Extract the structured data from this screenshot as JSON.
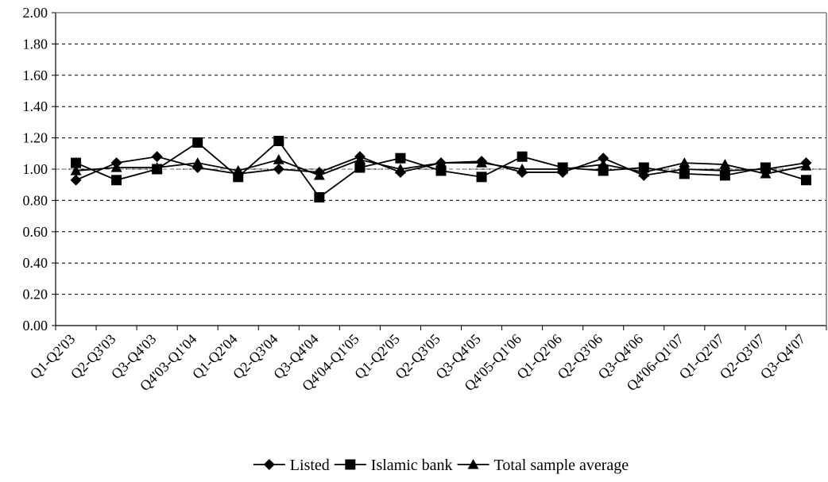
{
  "chart_data": {
    "type": "line",
    "title": "",
    "xlabel": "",
    "ylabel": "",
    "ylim": [
      0,
      2
    ],
    "yticks": [
      "0.00",
      "0.20",
      "0.40",
      "0.60",
      "0.80",
      "1.00",
      "1.20",
      "1.40",
      "1.60",
      "1.80",
      "2.00"
    ],
    "grid": "horizontal dashed",
    "legend_position": "bottom",
    "reference_line": 1.0,
    "categories": [
      "Q1-Q2'03",
      "Q2-Q3'03",
      "Q3-Q4'03",
      "Q4'03-Q1'04",
      "Q1-Q2'04",
      "Q2-Q3'04",
      "Q3-Q4'04",
      "Q4'04-Q1'05",
      "Q1-Q2'05",
      "Q2-Q3'05",
      "Q3-Q4'05",
      "Q4'05-Q1'06",
      "Q1-Q2'06",
      "Q2-Q3'06",
      "Q3-Q4'06",
      "Q4'06-Q1'07",
      "Q1-Q2'07",
      "Q2-Q3'07",
      "Q3-Q4'07"
    ],
    "series": [
      {
        "name": "Listed",
        "marker": "diamond",
        "values": [
          0.93,
          1.04,
          1.08,
          1.01,
          0.97,
          1.0,
          0.98,
          1.08,
          0.98,
          1.04,
          1.05,
          0.98,
          0.98,
          1.07,
          0.96,
          1.0,
          0.99,
          1.0,
          1.04
        ]
      },
      {
        "name": "Islamic bank",
        "marker": "square",
        "values": [
          1.04,
          0.93,
          1.0,
          1.17,
          0.95,
          1.18,
          0.82,
          1.01,
          1.07,
          0.99,
          0.95,
          1.08,
          1.01,
          0.99,
          1.01,
          0.97,
          0.96,
          1.01,
          0.93
        ]
      },
      {
        "name": "Total sample average",
        "marker": "triangle",
        "values": [
          0.99,
          1.01,
          1.01,
          1.04,
          0.99,
          1.06,
          0.96,
          1.06,
          1.0,
          1.04,
          1.04,
          1.0,
          1.0,
          1.03,
          0.98,
          1.04,
          1.03,
          0.97,
          1.02
        ]
      }
    ]
  }
}
